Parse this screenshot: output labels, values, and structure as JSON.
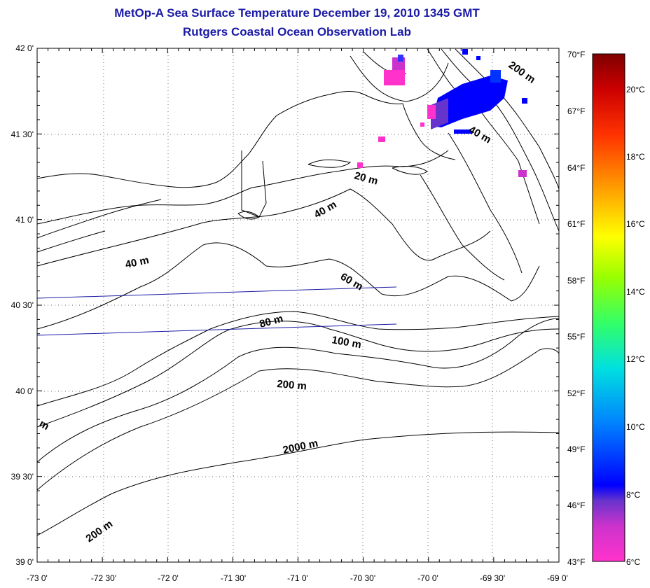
{
  "header": {
    "title": "MetOp-A Sea Surface Temperature December 19, 2010 1345 GMT",
    "subtitle": "Rutgers Coastal Ocean Observation Lab"
  },
  "map": {
    "lat_labels": [
      "42 0'",
      "41 30'",
      "41 0'",
      "40 30'",
      "40 0'",
      "39 30'",
      "39 0'"
    ],
    "lon_labels": [
      "-73 0'",
      "-72 30'",
      "-72 0'",
      "-71 30'",
      "-71 0'",
      "-70 30'",
      "-70 0'",
      "-69 30'",
      "-69 0'"
    ],
    "contour_labels": [
      "200 m",
      "40 m",
      "20 m",
      "40 m",
      "40 m",
      "60 m",
      "80 m",
      "100 m",
      "200 m",
      "2000 m",
      "200 m",
      "m"
    ],
    "land_color": "#ffffff",
    "line_color": "#000000",
    "transect_color": "#1a1aa6"
  },
  "colorbar": {
    "fahrenheit_labels": [
      "70°F",
      "67°F",
      "64°F",
      "61°F",
      "58°F",
      "55°F",
      "52°F",
      "49°F",
      "46°F",
      "43°F"
    ],
    "celsius_labels": [
      "20°C",
      "18°C",
      "16°C",
      "14°C",
      "12°C",
      "10°C",
      "8°C",
      "6°C"
    ],
    "range_c": [
      6,
      21
    ],
    "colors": [
      "#ff33cc",
      "#cc33cc",
      "#6633cc",
      "#0000ff",
      "#0066ff",
      "#00ccff",
      "#00ffcc",
      "#33ff66",
      "#99ff00",
      "#ffff00",
      "#ffcc00",
      "#ff8800",
      "#ff3300",
      "#cc0000",
      "#800000"
    ]
  }
}
